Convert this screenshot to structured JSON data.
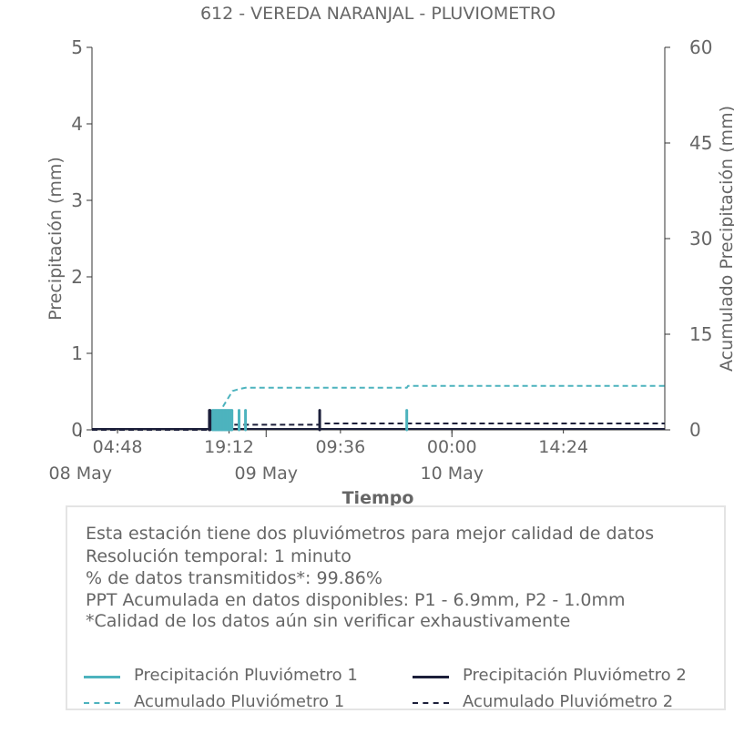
{
  "chart_data": {
    "type": "line",
    "title": "612 - VEREDA NARANJAL - PLUVIOMETRO",
    "xlabel": "Tiempo",
    "ylabel_left": "Precipitación (mm)",
    "ylabel_right": "Acumulado Precipitación (mm)",
    "ylim_left": [
      0,
      5
    ],
    "ylim_right": [
      0,
      60
    ],
    "yticks_left": [
      "0",
      "1",
      "2",
      "3",
      "4",
      "5"
    ],
    "yticks_right": [
      "0",
      "15",
      "30",
      "45",
      "60"
    ],
    "xlim": [
      "2025-05-08 01:30",
      "2025-05-11 03:30"
    ],
    "x_time_ticks": [
      "04:48",
      "19:12",
      "09:36",
      "00:00",
      "14:24"
    ],
    "x_time_tick_times": [
      "2025-05-08 04:48",
      "2025-05-08 19:12",
      "2025-05-09 09:36",
      "2025-05-10 00:00",
      "2025-05-10 14:24"
    ],
    "x_date_ticks": [
      "08 May",
      "09 May",
      "10 May"
    ],
    "x_date_tick_times": [
      "2025-05-08 00:00",
      "2025-05-09 00:00",
      "2025-05-10 00:00"
    ],
    "grid": false,
    "legend_placement": "bottom",
    "series": [
      {
        "name": "Precipitación Pluviómetro 1",
        "kind": "bars",
        "axis": "left",
        "color": "#4db3be",
        "points": [
          [
            "2025-05-08 17:05",
            0.254
          ],
          [
            "2025-05-08 17:15",
            0.254
          ],
          [
            "2025-05-08 17:25",
            0.254
          ],
          [
            "2025-05-08 17:35",
            0.254
          ],
          [
            "2025-05-08 17:45",
            0.254
          ],
          [
            "2025-05-08 17:55",
            0.254
          ],
          [
            "2025-05-08 18:05",
            0.254
          ],
          [
            "2025-05-08 18:15",
            0.254
          ],
          [
            "2025-05-08 18:25",
            0.254
          ],
          [
            "2025-05-08 18:35",
            0.254
          ],
          [
            "2025-05-08 18:45",
            0.254
          ],
          [
            "2025-05-08 18:55",
            0.254
          ],
          [
            "2025-05-08 19:05",
            0.254
          ],
          [
            "2025-05-08 19:15",
            0.254
          ],
          [
            "2025-05-08 19:25",
            0.254
          ],
          [
            "2025-05-08 19:35",
            0.254
          ],
          [
            "2025-05-08 20:30",
            0.254
          ],
          [
            "2025-05-08 21:20",
            0.254
          ],
          [
            "2025-05-09 18:10",
            0.254
          ]
        ]
      },
      {
        "name": "Precipitación Pluviómetro 2",
        "kind": "bars",
        "axis": "left",
        "color": "#1c1f3a",
        "points": [
          [
            "2025-05-08 16:40",
            0.254
          ],
          [
            "2025-05-08 16:45",
            0.254
          ],
          [
            "2025-05-09 06:55",
            0.254
          ]
        ]
      },
      {
        "name": "Acumulado Pluviómetro 1",
        "kind": "dashed",
        "axis": "right",
        "color": "#4db3be",
        "points": [
          [
            "2025-05-08 01:30",
            0
          ],
          [
            "2025-05-08 17:00",
            0
          ],
          [
            "2025-05-08 17:30",
            1.0
          ],
          [
            "2025-05-08 18:00",
            2.5
          ],
          [
            "2025-05-08 18:30",
            3.8
          ],
          [
            "2025-05-08 19:00",
            4.8
          ],
          [
            "2025-05-08 19:40",
            6.1
          ],
          [
            "2025-05-08 20:30",
            6.4
          ],
          [
            "2025-05-08 21:20",
            6.6
          ],
          [
            "2025-05-09 18:10",
            6.6
          ],
          [
            "2025-05-09 18:20",
            6.9
          ],
          [
            "2025-05-11 03:30",
            6.9
          ]
        ]
      },
      {
        "name": "Acumulado Pluviómetro 2",
        "kind": "dashed",
        "axis": "right",
        "color": "#1c1f3a",
        "points": [
          [
            "2025-05-08 01:30",
            0
          ],
          [
            "2025-05-08 16:40",
            0
          ],
          [
            "2025-05-08 16:45",
            0.5
          ],
          [
            "2025-05-08 17:00",
            0.8
          ],
          [
            "2025-05-09 06:55",
            0.8
          ],
          [
            "2025-05-09 07:00",
            1.0
          ],
          [
            "2025-05-11 03:30",
            1.0
          ]
        ]
      }
    ]
  },
  "info": {
    "lines": [
      "Esta estación tiene dos pluviómetros para mejor calidad de datos",
      "Resolución temporal: 1 minuto",
      "% de datos transmitidos*: 99.86%",
      "PPT Acumulada en datos disponibles: P1 - 6.9mm, P2 - 1.0mm",
      "*Calidad de los datos aún sin verificar exhaustivamente"
    ]
  },
  "legend": {
    "items": [
      {
        "label": "Precipitación Pluviómetro 1",
        "color": "#4db3be",
        "style": "solid"
      },
      {
        "label": "Precipitación Pluviómetro 2",
        "color": "#1c1f3a",
        "style": "solid"
      },
      {
        "label": "Acumulado Pluviómetro 1",
        "color": "#4db3be",
        "style": "dashed"
      },
      {
        "label": "Acumulado Pluviómetro 2",
        "color": "#1c1f3a",
        "style": "dashed"
      }
    ]
  }
}
